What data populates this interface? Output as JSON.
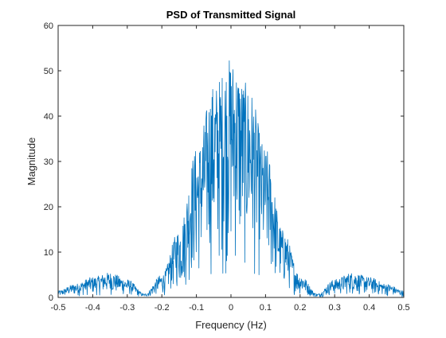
{
  "chart_data": {
    "type": "line",
    "title": "PSD of Transmitted Signal",
    "xlabel": "Frequency (Hz)",
    "ylabel": "Magnitude",
    "xlim": [
      -0.5,
      0.5
    ],
    "ylim": [
      0,
      60
    ],
    "xticks": [
      -0.5,
      -0.4,
      -0.3,
      -0.2,
      -0.1,
      0,
      0.1,
      0.2,
      0.3,
      0.4,
      0.5
    ],
    "xtick_labels": [
      "-0.5",
      "-0.4",
      "-0.3",
      "-0.2",
      "-0.1",
      "0",
      "0.1",
      "0.2",
      "0.3",
      "0.4",
      "0.5"
    ],
    "yticks": [
      0,
      10,
      20,
      30,
      40,
      50,
      60
    ],
    "ytick_labels": [
      "0",
      "10",
      "20",
      "30",
      "40",
      "50",
      "60"
    ],
    "grid": false,
    "line_color": "#0072bd",
    "series": [
      {
        "name": "PSD",
        "description_shape": "noisy spectrum: main lobe peaked near 0 Hz (~52), nulls near ±0.25 Hz, side lobes near ±0.35 Hz (~5)",
        "envelope_x": [
          -0.5,
          -0.45,
          -0.4,
          -0.35,
          -0.3,
          -0.25,
          -0.2,
          -0.15,
          -0.1,
          -0.05,
          0,
          0.05,
          0.1,
          0.15,
          0.2,
          0.25,
          0.3,
          0.35,
          0.4,
          0.45,
          0.5
        ],
        "envelope_peak": [
          1.5,
          3,
          4.5,
          5.5,
          4,
          0.8,
          5,
          15,
          33,
          47,
          53,
          47,
          33,
          15,
          5,
          0.8,
          4,
          5.5,
          4.5,
          3,
          1.5
        ]
      }
    ]
  }
}
